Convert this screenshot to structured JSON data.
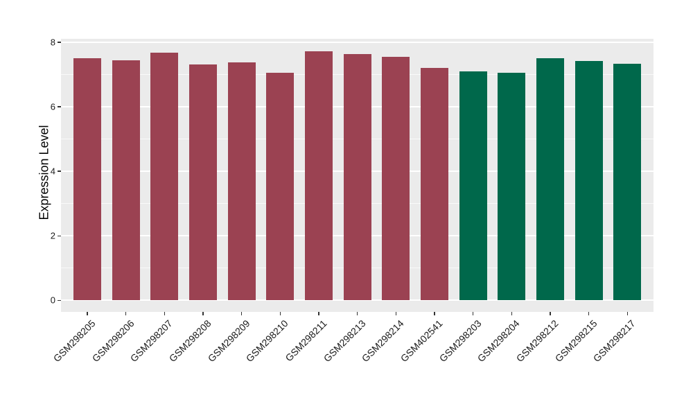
{
  "chart_data": {
    "type": "bar",
    "title": "",
    "xlabel": "",
    "ylabel": "Expression Level",
    "categories": [
      "GSM298205",
      "GSM298206",
      "GSM298207",
      "GSM298208",
      "GSM298209",
      "GSM298210",
      "GSM298211",
      "GSM298213",
      "GSM298214",
      "GSM402541",
      "GSM298203",
      "GSM298204",
      "GSM298212",
      "GSM298215",
      "GSM298217"
    ],
    "values": [
      7.49,
      7.43,
      7.68,
      7.31,
      7.38,
      7.05,
      7.71,
      7.63,
      7.54,
      7.19,
      7.1,
      7.04,
      7.49,
      7.42,
      7.33
    ],
    "bar_color_keys": [
      "maroon",
      "maroon",
      "maroon",
      "maroon",
      "maroon",
      "maroon",
      "maroon",
      "maroon",
      "maroon",
      "maroon",
      "green",
      "green",
      "green",
      "green",
      "green"
    ],
    "colors": {
      "maroon": "#9B4252",
      "green": "#00684B"
    },
    "ylim": [
      0,
      8
    ],
    "yticks": [
      0,
      2,
      4,
      6,
      8
    ],
    "yticks_minor": [
      1,
      3,
      5,
      7
    ],
    "grid": true,
    "legend_position": "none",
    "panel_background": "#EBEBEB",
    "gridline_color": "#FFFFFF",
    "tick_label_color": "#1a1a1a"
  }
}
